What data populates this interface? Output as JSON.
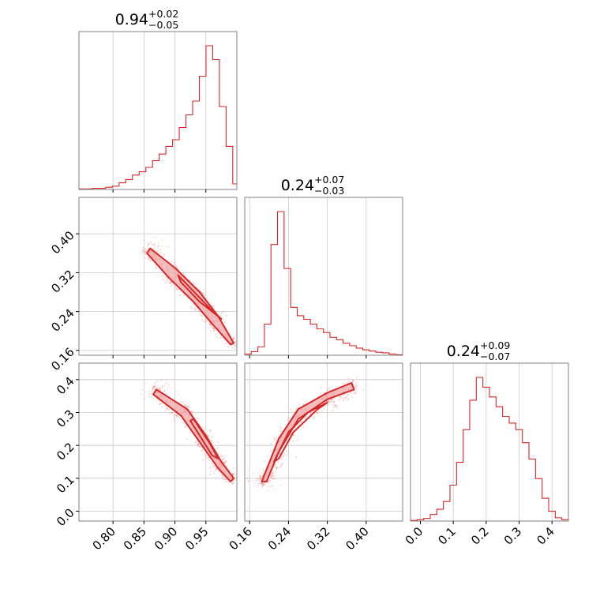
{
  "chart_data": {
    "type": "corner",
    "color": "#d62728",
    "fill_color": "#f0a8a8",
    "grid": true,
    "parameters": [
      {
        "id": "p0",
        "title": {
          "median": "0.94",
          "plus": "+0.02",
          "minus": "−0.05"
        },
        "range": [
          0.745,
          1.0
        ],
        "ticks": [
          0.8,
          0.85,
          0.9,
          0.95
        ],
        "tick_labels": [
          "0.80",
          "0.85",
          "0.90",
          "0.95"
        ],
        "hist": {
          "edges": [
            0.745,
            0.7558,
            0.7666,
            0.7774,
            0.7882,
            0.799,
            0.8098,
            0.8206,
            0.8314,
            0.8422,
            0.853,
            0.8638,
            0.8746,
            0.8854,
            0.8962,
            0.907,
            0.9178,
            0.9286,
            0.9394,
            0.9502,
            0.961,
            0.9718,
            0.9826,
            0.9934,
            1.0
          ],
          "counts": [
            1,
            1,
            2,
            2,
            4,
            6,
            12,
            18,
            26,
            32,
            40,
            52,
            64,
            78,
            90,
            112,
            135,
            160,
            205,
            260,
            235,
            150,
            78,
            10
          ]
        }
      },
      {
        "id": "p1",
        "title": {
          "median": "0.24",
          "plus": "+0.07",
          "minus": "−0.03"
        },
        "range": [
          0.15,
          0.475
        ],
        "ticks": [
          0.16,
          0.24,
          0.32,
          0.4
        ],
        "tick_labels": [
          "0.16",
          "0.24",
          "0.32",
          "0.40"
        ],
        "hist": {
          "edges": [
            0.15,
            0.1635,
            0.177,
            0.1905,
            0.204,
            0.2175,
            0.231,
            0.2445,
            0.258,
            0.2715,
            0.285,
            0.2985,
            0.312,
            0.3255,
            0.339,
            0.3525,
            0.366,
            0.3795,
            0.393,
            0.4065,
            0.42,
            0.4335,
            0.447,
            0.4605,
            0.475
          ],
          "counts": [
            2,
            6,
            14,
            52,
            185,
            240,
            145,
            80,
            66,
            60,
            52,
            44,
            38,
            30,
            26,
            20,
            16,
            12,
            9,
            7,
            5,
            4,
            2,
            1
          ]
        }
      },
      {
        "id": "p2",
        "title": {
          "median": "0.24",
          "plus": "+0.09",
          "minus": "−0.07"
        },
        "range": [
          -0.03,
          0.45
        ],
        "ticks": [
          0.0,
          0.1,
          0.2,
          0.3,
          0.4
        ],
        "tick_labels": [
          "0.0",
          "0.1",
          "0.2",
          "0.3",
          "0.4"
        ],
        "hist": {
          "edges": [
            -0.03,
            -0.01,
            0.01,
            0.03,
            0.05,
            0.07,
            0.09,
            0.11,
            0.13,
            0.15,
            0.17,
            0.19,
            0.21,
            0.23,
            0.25,
            0.27,
            0.29,
            0.31,
            0.33,
            0.35,
            0.37,
            0.39,
            0.41,
            0.43,
            0.45
          ],
          "counts": [
            1,
            2,
            4,
            10,
            18,
            30,
            55,
            90,
            140,
            185,
            220,
            205,
            190,
            175,
            160,
            150,
            140,
            120,
            95,
            65,
            35,
            15,
            5,
            2
          ]
        }
      }
    ],
    "scatter_panels": [
      {
        "x": "p0",
        "y": "p1",
        "ytick_labels": [
          "0.40",
          "0.32",
          "0.24",
          "0.16"
        ],
        "contour_outer": [
          [
            0.86,
            0.37
          ],
          [
            0.9,
            0.33
          ],
          [
            0.94,
            0.28
          ],
          [
            0.97,
            0.23
          ],
          [
            0.995,
            0.175
          ],
          [
            0.99,
            0.172
          ],
          [
            0.96,
            0.215
          ],
          [
            0.93,
            0.26
          ],
          [
            0.89,
            0.31
          ],
          [
            0.855,
            0.36
          ]
        ],
        "contour_inner": [
          [
            0.905,
            0.315
          ],
          [
            0.935,
            0.275
          ],
          [
            0.965,
            0.235
          ],
          [
            0.975,
            0.225
          ],
          [
            0.94,
            0.26
          ],
          [
            0.91,
            0.3
          ]
        ]
      },
      {
        "x": "p0",
        "y": "p2",
        "ytick_labels": [
          "0.4",
          "0.3",
          "0.2",
          "0.1",
          "0.0"
        ],
        "contour_outer": [
          [
            0.87,
            0.37
          ],
          [
            0.92,
            0.31
          ],
          [
            0.95,
            0.23
          ],
          [
            0.975,
            0.15
          ],
          [
            0.995,
            0.1
          ],
          [
            0.99,
            0.09
          ],
          [
            0.97,
            0.13
          ],
          [
            0.94,
            0.21
          ],
          [
            0.91,
            0.29
          ],
          [
            0.865,
            0.355
          ]
        ],
        "contour_inner": [
          [
            0.93,
            0.28
          ],
          [
            0.955,
            0.21
          ],
          [
            0.97,
            0.16
          ],
          [
            0.96,
            0.17
          ],
          [
            0.94,
            0.23
          ],
          [
            0.925,
            0.275
          ]
        ]
      },
      {
        "x": "p1",
        "y": "p2",
        "xtick_labels": [
          "0.16",
          "0.24",
          "0.32",
          "0.40"
        ],
        "contour_outer": [
          [
            0.185,
            0.09
          ],
          [
            0.22,
            0.22
          ],
          [
            0.26,
            0.31
          ],
          [
            0.32,
            0.36
          ],
          [
            0.37,
            0.39
          ],
          [
            0.375,
            0.37
          ],
          [
            0.32,
            0.34
          ],
          [
            0.26,
            0.28
          ],
          [
            0.22,
            0.18
          ],
          [
            0.195,
            0.09
          ]
        ],
        "contour_inner": [
          [
            0.21,
            0.15
          ],
          [
            0.24,
            0.24
          ],
          [
            0.28,
            0.3
          ],
          [
            0.32,
            0.33
          ],
          [
            0.3,
            0.31
          ],
          [
            0.25,
            0.24
          ],
          [
            0.22,
            0.16
          ]
        ]
      }
    ],
    "bottom_tick_labels": {
      "p0": [
        "0.80",
        "0.85",
        "0.90",
        "0.95"
      ],
      "p1": [
        "0.16",
        "0.24",
        "0.32",
        "0.40"
      ],
      "p2": [
        "0.0",
        "0.1",
        "0.2",
        "0.3",
        "0.4"
      ]
    }
  }
}
